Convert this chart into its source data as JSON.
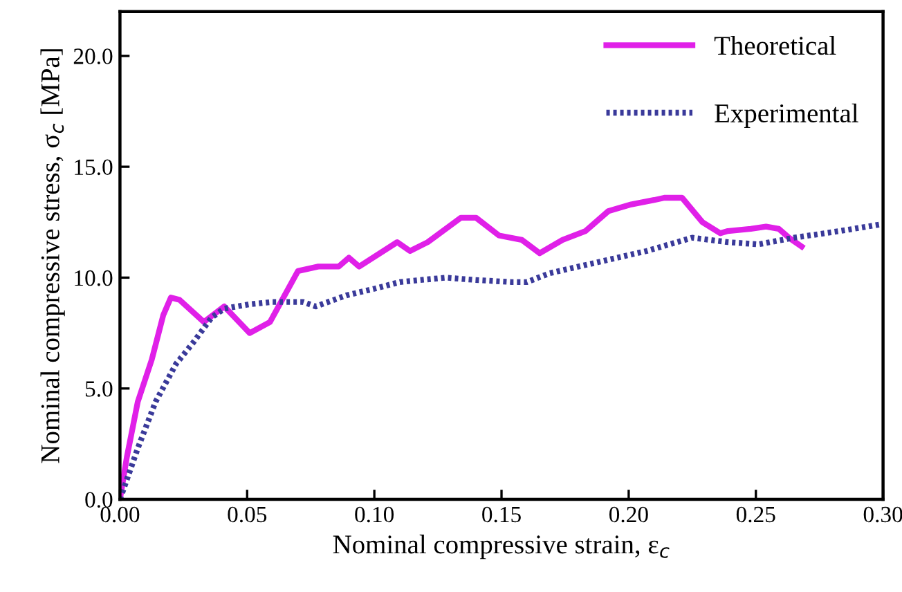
{
  "chart_data": {
    "type": "line",
    "xlabel": "Nominal compressive strain, ε$_{c}$",
    "ylabel": "Nominal compressive stress, σ$_{c}$ [MPa]",
    "xlim": [
      0,
      0.3
    ],
    "ylim": [
      0,
      22
    ],
    "xticks": [
      {
        "value": 0,
        "label": "0.00"
      },
      {
        "value": 0.05,
        "label": "0.05"
      },
      {
        "value": 0.1,
        "label": "0.10"
      },
      {
        "value": 0.15,
        "label": "0.15"
      },
      {
        "value": 0.2,
        "label": "0.20"
      },
      {
        "value": 0.25,
        "label": "0.25"
      },
      {
        "value": 0.3,
        "label": "0.30"
      }
    ],
    "yticks": [
      {
        "value": 0,
        "label": "0.0"
      },
      {
        "value": 5,
        "label": "5.0"
      },
      {
        "value": 10,
        "label": "10.0"
      },
      {
        "value": 15,
        "label": "15.0"
      },
      {
        "value": 20,
        "label": "20.0"
      }
    ],
    "grid": false,
    "legend": "top right",
    "series": [
      {
        "name": "Theoretical",
        "color": "#e020e8",
        "line_style": "solid",
        "x": [
          0,
          0.0027,
          0.007,
          0.0125,
          0.017,
          0.02,
          0.0234,
          0.033,
          0.041,
          0.051,
          0.059,
          0.07,
          0.078,
          0.086,
          0.09,
          0.094,
          0.109,
          0.114,
          0.121,
          0.134,
          0.14,
          0.149,
          0.158,
          0.165,
          0.174,
          0.183,
          0.192,
          0.201,
          0.21,
          0.214,
          0.221,
          0.229,
          0.236,
          0.239,
          0.248,
          0.254,
          0.259,
          0.263,
          0.268
        ],
        "values": [
          0,
          1.9,
          4.4,
          6.3,
          8.3,
          9.1,
          9.0,
          8.0,
          8.7,
          7.5,
          8.0,
          10.3,
          10.5,
          10.5,
          10.9,
          10.5,
          11.6,
          11.2,
          11.6,
          12.7,
          12.7,
          11.9,
          11.7,
          11.1,
          11.7,
          12.1,
          13.0,
          13.3,
          13.5,
          13.6,
          13.6,
          12.5,
          12.0,
          12.1,
          12.2,
          12.3,
          12.2,
          11.8,
          11.4
        ]
      },
      {
        "name": "Experimental",
        "color": "#3a3a9a",
        "line_style": "dotted",
        "x": [
          0,
          0.007,
          0.014,
          0.022,
          0.029,
          0.036,
          0.041,
          0.051,
          0.06,
          0.072,
          0.077,
          0.089,
          0.1,
          0.11,
          0.128,
          0.139,
          0.154,
          0.16,
          0.169,
          0.188,
          0.207,
          0.225,
          0.239,
          0.251,
          0.265,
          0.283,
          0.299
        ],
        "values": [
          0,
          2.3,
          4.4,
          6.1,
          7.1,
          8.2,
          8.6,
          8.8,
          8.9,
          8.9,
          8.7,
          9.2,
          9.5,
          9.8,
          10.0,
          9.9,
          9.8,
          9.8,
          10.2,
          10.7,
          11.2,
          11.8,
          11.6,
          11.5,
          11.8,
          12.1,
          12.4
        ]
      }
    ]
  }
}
